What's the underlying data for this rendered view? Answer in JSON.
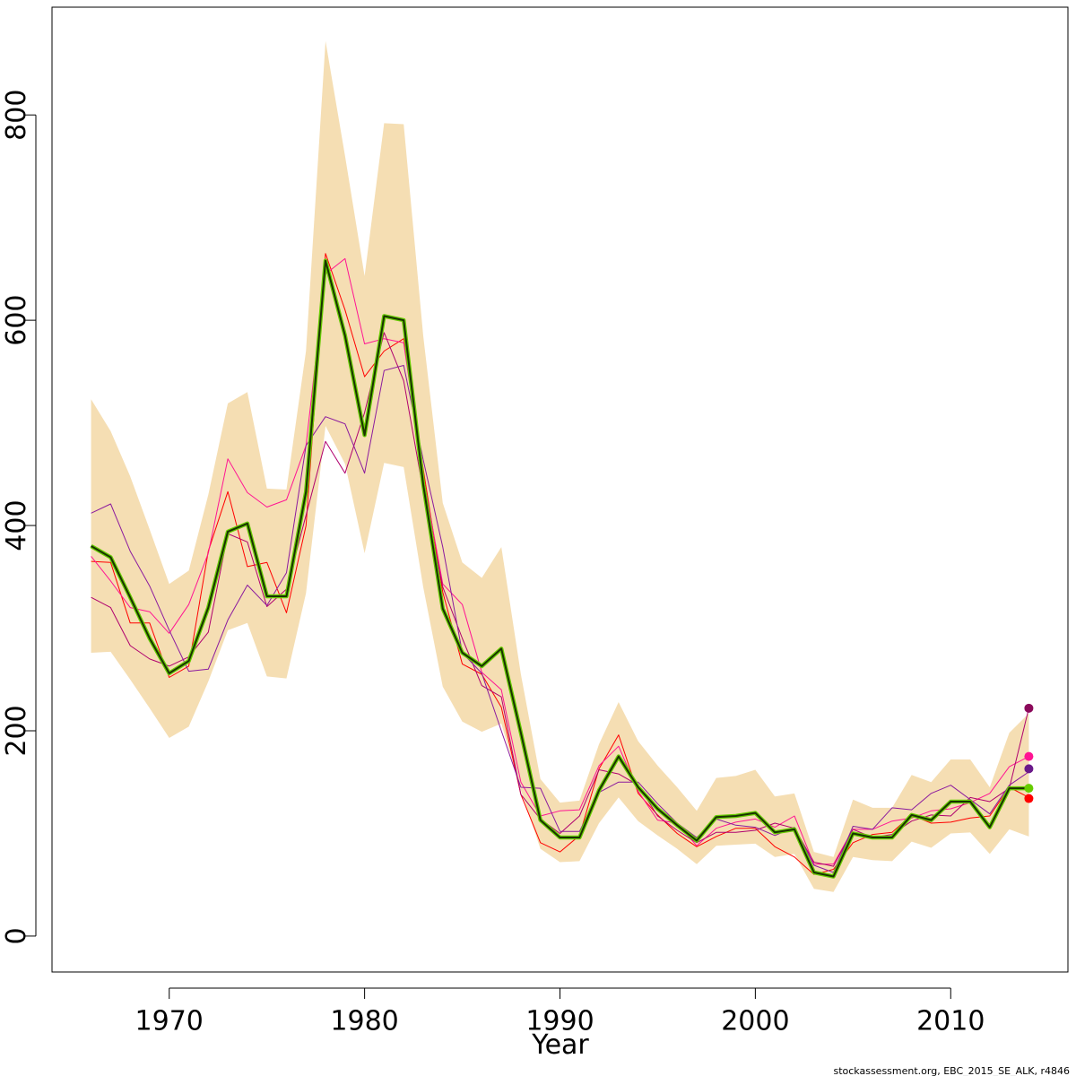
{
  "chart_data": {
    "type": "line",
    "title": "",
    "xlabel": "Year",
    "ylabel": "",
    "xlim": [
      1964,
      2016
    ],
    "ylim": [
      -35,
      905
    ],
    "x_ticks": [
      1970,
      1980,
      1990,
      2000,
      2010
    ],
    "y_ticks": [
      0,
      200,
      400,
      600,
      800
    ],
    "x": [
      1966,
      1967,
      1968,
      1969,
      1970,
      1971,
      1972,
      1973,
      1974,
      1975,
      1976,
      1977,
      1978,
      1979,
      1980,
      1981,
      1982,
      1983,
      1984,
      1985,
      1986,
      1987,
      1988,
      1989,
      1990,
      1991,
      1992,
      1993,
      1994,
      1995,
      1996,
      1997,
      1998,
      1999,
      2000,
      2001,
      2002,
      2003,
      2004,
      2005,
      2006,
      2007,
      2008,
      2009,
      2010,
      2011,
      2012,
      2013,
      2014
    ],
    "band": {
      "upper": [
        523,
        492,
        448,
        396,
        343,
        356,
        430,
        519,
        530,
        436,
        435,
        570,
        872,
        760,
        643,
        792,
        791,
        585,
        422,
        364,
        349,
        379,
        255,
        153,
        130,
        132,
        187,
        228,
        190,
        166,
        145,
        122,
        154,
        156,
        162,
        136,
        139,
        82,
        77,
        133,
        125,
        125,
        157,
        150,
        172,
        172,
        145,
        198,
        217
      ],
      "lower": [
        276,
        277,
        250,
        222,
        193,
        204,
        248,
        298,
        305,
        253,
        251,
        334,
        497,
        460,
        373,
        461,
        457,
        340,
        243,
        209,
        199,
        207,
        142,
        85,
        72,
        73,
        110,
        135,
        112,
        98,
        85,
        70,
        88,
        89,
        90,
        77,
        80,
        46,
        43,
        77,
        74,
        73,
        92,
        86,
        100,
        101,
        80,
        104,
        97
      ]
    },
    "series": [
      {
        "values": [
          380,
          369,
          330,
          290,
          256,
          268,
          320,
          394,
          402,
          331,
          331,
          433,
          658,
          585,
          488,
          604,
          600,
          440,
          319,
          276,
          263,
          280,
          198,
          113,
          96,
          96,
          142,
          175,
          145,
          124,
          108,
          93,
          116,
          117,
          120,
          101,
          104,
          62,
          58,
          100,
          96,
          96,
          118,
          113,
          131,
          131,
          106,
          144,
          144
        ],
        "color": "#1a3300"
      },
      {
        "values": [
          365,
          364,
          305,
          305,
          252,
          263,
          375,
          433,
          360,
          364,
          315,
          400,
          665,
          610,
          545,
          570,
          582,
          455,
          335,
          265,
          255,
          223,
          138,
          91,
          82,
          98,
          163,
          196,
          139,
          118,
          100,
          87,
          97,
          105,
          105,
          87,
          77,
          60,
          65,
          91,
          99,
          101,
          118,
          110,
          111,
          115,
          117,
          145,
          135
        ],
        "color": "#ff0000"
      },
      {
        "values": [
          370,
          346,
          320,
          316,
          295,
          323,
          373,
          465,
          432,
          418,
          425,
          478,
          645,
          660,
          577,
          582,
          578,
          448,
          343,
          323,
          257,
          240,
          150,
          117,
          122,
          123,
          166,
          185,
          141,
          113,
          110,
          88,
          105,
          111,
          114,
          106,
          117,
          70,
          70,
          104,
          104,
          112,
          115,
          122,
          124,
          130,
          139,
          165,
          175
        ],
        "color": "#ff1493"
      },
      {
        "values": [
          330,
          320,
          283,
          270,
          263,
          272,
          296,
          392,
          384,
          321,
          338,
          410,
          482,
          451,
          510,
          588,
          541,
          434,
          340,
          290,
          244,
          233,
          138,
          114,
          100,
          117,
          162,
          158,
          147,
          117,
          103,
          91,
          101,
          101,
          103,
          110,
          105,
          72,
          68,
          104,
          96,
          99,
          112,
          118,
          117,
          135,
          131,
          144,
          222
        ],
        "color": "#b0006e"
      },
      {
        "values": [
          412,
          421,
          375,
          341,
          298,
          258,
          260,
          308,
          342,
          322,
          354,
          478,
          506,
          499,
          451,
          551,
          556,
          464,
          379,
          276,
          256,
          200,
          145,
          144,
          102,
          102,
          140,
          150,
          150,
          129,
          110,
          96,
          114,
          108,
          106,
          98,
          106,
          69,
          62,
          107,
          104,
          125,
          123,
          139,
          147,
          133,
          119,
          147,
          160
        ],
        "color": "#8b1a9e"
      }
    ],
    "endpoint_markers": [
      {
        "year": 2014,
        "value": 222,
        "color": "#8b0a5b"
      },
      {
        "year": 2014,
        "value": 175,
        "color": "#ff1493"
      },
      {
        "year": 2014,
        "value": 163,
        "color": "#6a1a8a"
      },
      {
        "year": 2014,
        "value": 144,
        "color": "#66cc00"
      },
      {
        "year": 2014,
        "value": 134,
        "color": "#ff0000"
      }
    ],
    "band_color": "#f5deb3",
    "grid": false,
    "legend": "none"
  },
  "footer": "stockassessment.org, EBC_2015_SE_ALK, r4846"
}
